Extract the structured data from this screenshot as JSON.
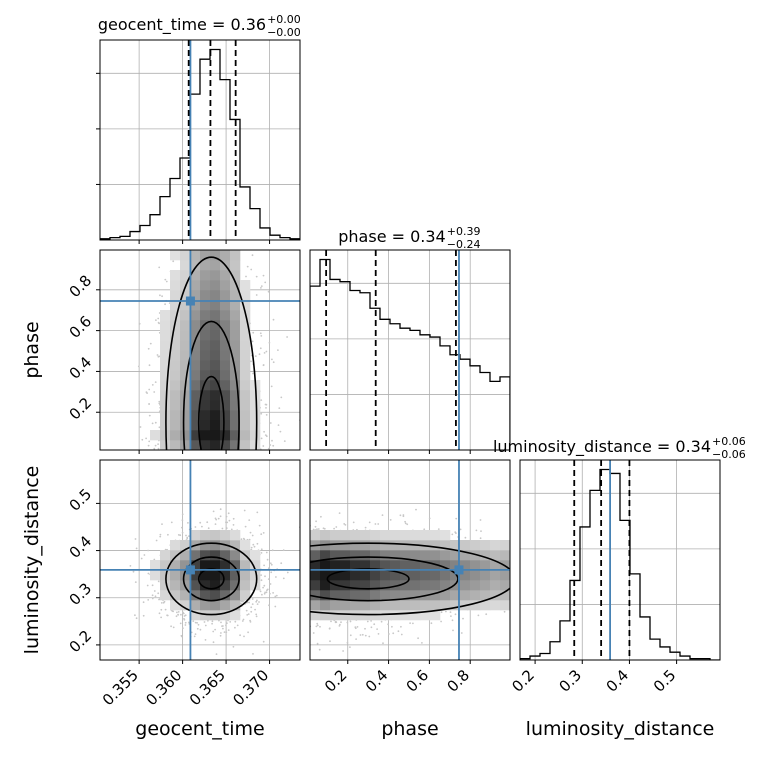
{
  "chart_data": {
    "type": "corner",
    "parameters": [
      "geocent_time",
      "phase",
      "luminosity_distance"
    ],
    "axis_labels": {
      "x": [
        "geocent_time",
        "phase",
        "luminosity_distance"
      ],
      "y": [
        "phase",
        "luminosity_distance"
      ]
    },
    "titles": [
      {
        "name": "geocent_time",
        "median": "0.36",
        "plus": "+0.00",
        "minus": "−0.00"
      },
      {
        "name": "phase",
        "median": "0.34",
        "plus": "+0.39",
        "minus": "−0.24"
      },
      {
        "name": "luminosity_distance",
        "median": "0.34",
        "plus": "+0.06",
        "minus": "−0.06"
      }
    ],
    "ranges": {
      "geocent_time": [
        0.3505,
        0.3735
      ],
      "phase": [
        0.015,
        0.995
      ],
      "luminosity_distance": [
        0.168,
        0.592
      ]
    },
    "ticks": {
      "geocent_time": [
        "0.355",
        "0.360",
        "0.365",
        "0.370"
      ],
      "phase": [
        "0.2",
        "0.4",
        "0.6",
        "0.8"
      ],
      "luminosity_distance": [
        "0.2",
        "0.3",
        "0.4",
        "0.5"
      ]
    },
    "truths": {
      "geocent_time": 0.3609,
      "phase": 0.745,
      "luminosity_distance": 0.359
    },
    "quantiles": {
      "geocent_time": [
        0.3607,
        0.3632,
        0.3661
      ],
      "phase": [
        0.094,
        0.337,
        0.73
      ],
      "luminosity_distance": [
        0.283,
        0.34,
        0.4
      ]
    },
    "histograms": {
      "geocent_time": {
        "edges": [
          0.3505,
          0.35165,
          0.3528,
          0.35395,
          0.3551,
          0.35625,
          0.3574,
          0.35855,
          0.3597,
          0.36085,
          0.362,
          0.36315,
          0.3643,
          0.36545,
          0.3666,
          0.36775,
          0.3689,
          0.37005,
          0.3712,
          0.37235,
          0.3735
        ],
        "counts": [
          1,
          2,
          3,
          7,
          12,
          21,
          36,
          51,
          68,
          121,
          150,
          158,
          133,
          100,
          44,
          26,
          10,
          4,
          2,
          1
        ]
      },
      "phase": {
        "edges": [
          0.015,
          0.064,
          0.113,
          0.162,
          0.211,
          0.26,
          0.309,
          0.358,
          0.407,
          0.456,
          0.505,
          0.554,
          0.603,
          0.652,
          0.701,
          0.75,
          0.799,
          0.848,
          0.897,
          0.946,
          0.995
        ],
        "counts": [
          74,
          86,
          77,
          76,
          72,
          71,
          64,
          59,
          57,
          55,
          54,
          52,
          51,
          47,
          43,
          41,
          38,
          35,
          31,
          33
        ]
      },
      "luminosity_distance": {
        "edges": [
          0.168,
          0.1892,
          0.2104,
          0.2316,
          0.2528,
          0.274,
          0.2952,
          0.3164,
          0.3376,
          0.3588,
          0.38,
          0.4012,
          0.4224,
          0.4436,
          0.4648,
          0.486,
          0.5072,
          0.5284,
          0.5496,
          0.5708,
          0.592
        ],
        "counts": [
          1,
          3,
          5,
          14,
          30,
          61,
          102,
          130,
          146,
          143,
          107,
          66,
          33,
          16,
          10,
          6,
          3,
          1,
          1,
          0
        ]
      }
    }
  }
}
